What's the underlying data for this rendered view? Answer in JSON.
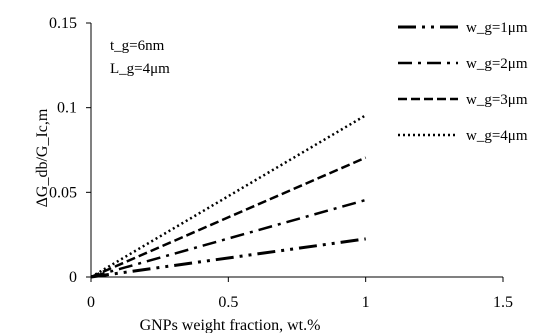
{
  "chart_data": {
    "type": "line",
    "xlabel": "GNPs weight fraction, wt.%",
    "ylabel": "ΔG_db/G_Ic,m",
    "xlim": [
      0,
      1.5
    ],
    "ylim": [
      0,
      0.15
    ],
    "x_ticks": [
      "0",
      "0.5",
      "1",
      "1.5"
    ],
    "y_ticks": [
      "0",
      "0.05",
      "0.1",
      "0.15"
    ],
    "grid": false,
    "legend_position": "top-right",
    "annotations": [
      "t_g=6nm",
      "L_g=4μm"
    ],
    "series": [
      {
        "name": "w_g=1μm",
        "dash": "long-dash-dot-dot",
        "x": [
          0,
          1
        ],
        "y": [
          0,
          0.0225
        ]
      },
      {
        "name": "w_g=2μm",
        "dash": "long-dash-dot",
        "x": [
          0,
          1
        ],
        "y": [
          0,
          0.0455
        ]
      },
      {
        "name": "w_g=3μm",
        "dash": "dash",
        "x": [
          0,
          1
        ],
        "y": [
          0,
          0.0705
        ]
      },
      {
        "name": "w_g=4μm",
        "dash": "dot",
        "x": [
          0,
          1
        ],
        "y": [
          0,
          0.0955
        ]
      }
    ]
  }
}
